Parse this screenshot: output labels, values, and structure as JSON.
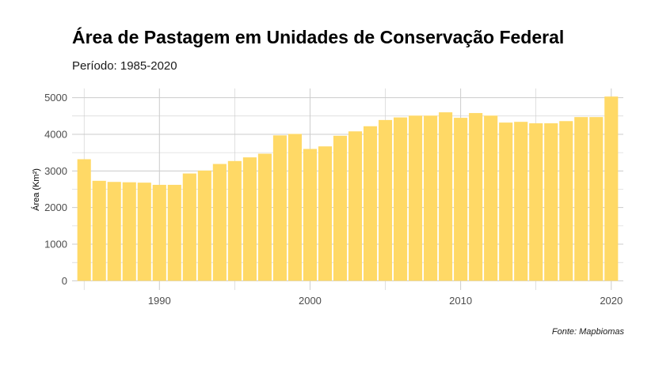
{
  "chart_data": {
    "type": "bar",
    "title": "Área de Pastagem em Unidades de Conservação Federal",
    "subtitle": "Período: 1985-2020",
    "caption": "Fonte: Mapbiomas",
    "xlabel": "",
    "ylabel": "Área (Km²)",
    "x": [
      1985,
      1986,
      1987,
      1988,
      1989,
      1990,
      1991,
      1992,
      1993,
      1994,
      1995,
      1996,
      1997,
      1998,
      1999,
      2000,
      2001,
      2002,
      2003,
      2004,
      2005,
      2006,
      2007,
      2008,
      2009,
      2010,
      2011,
      2012,
      2013,
      2014,
      2015,
      2016,
      2017,
      2018,
      2019,
      2020
    ],
    "values": [
      3320,
      2730,
      2700,
      2690,
      2680,
      2620,
      2620,
      2930,
      3010,
      3190,
      3270,
      3370,
      3470,
      3970,
      4010,
      3600,
      3670,
      3960,
      4080,
      4220,
      4390,
      4460,
      4510,
      4510,
      4600,
      4450,
      4580,
      4510,
      4320,
      4340,
      4300,
      4300,
      4360,
      4470,
      4470,
      5030
    ],
    "x_ticks": [
      1990,
      2000,
      2010,
      2020
    ],
    "x_tick_labels": [
      "1990",
      "2000",
      "2010",
      "2020"
    ],
    "y_ticks": [
      0,
      1000,
      2000,
      3000,
      4000,
      5000
    ],
    "y_tick_labels": [
      "0",
      "1000",
      "2000",
      "3000",
      "4000",
      "5000"
    ],
    "xlim": [
      1984.2,
      2020.8
    ],
    "ylim": [
      -250,
      5250
    ],
    "grid": true,
    "bar_color": "#FFD966",
    "grid_color": "#cccccc"
  }
}
